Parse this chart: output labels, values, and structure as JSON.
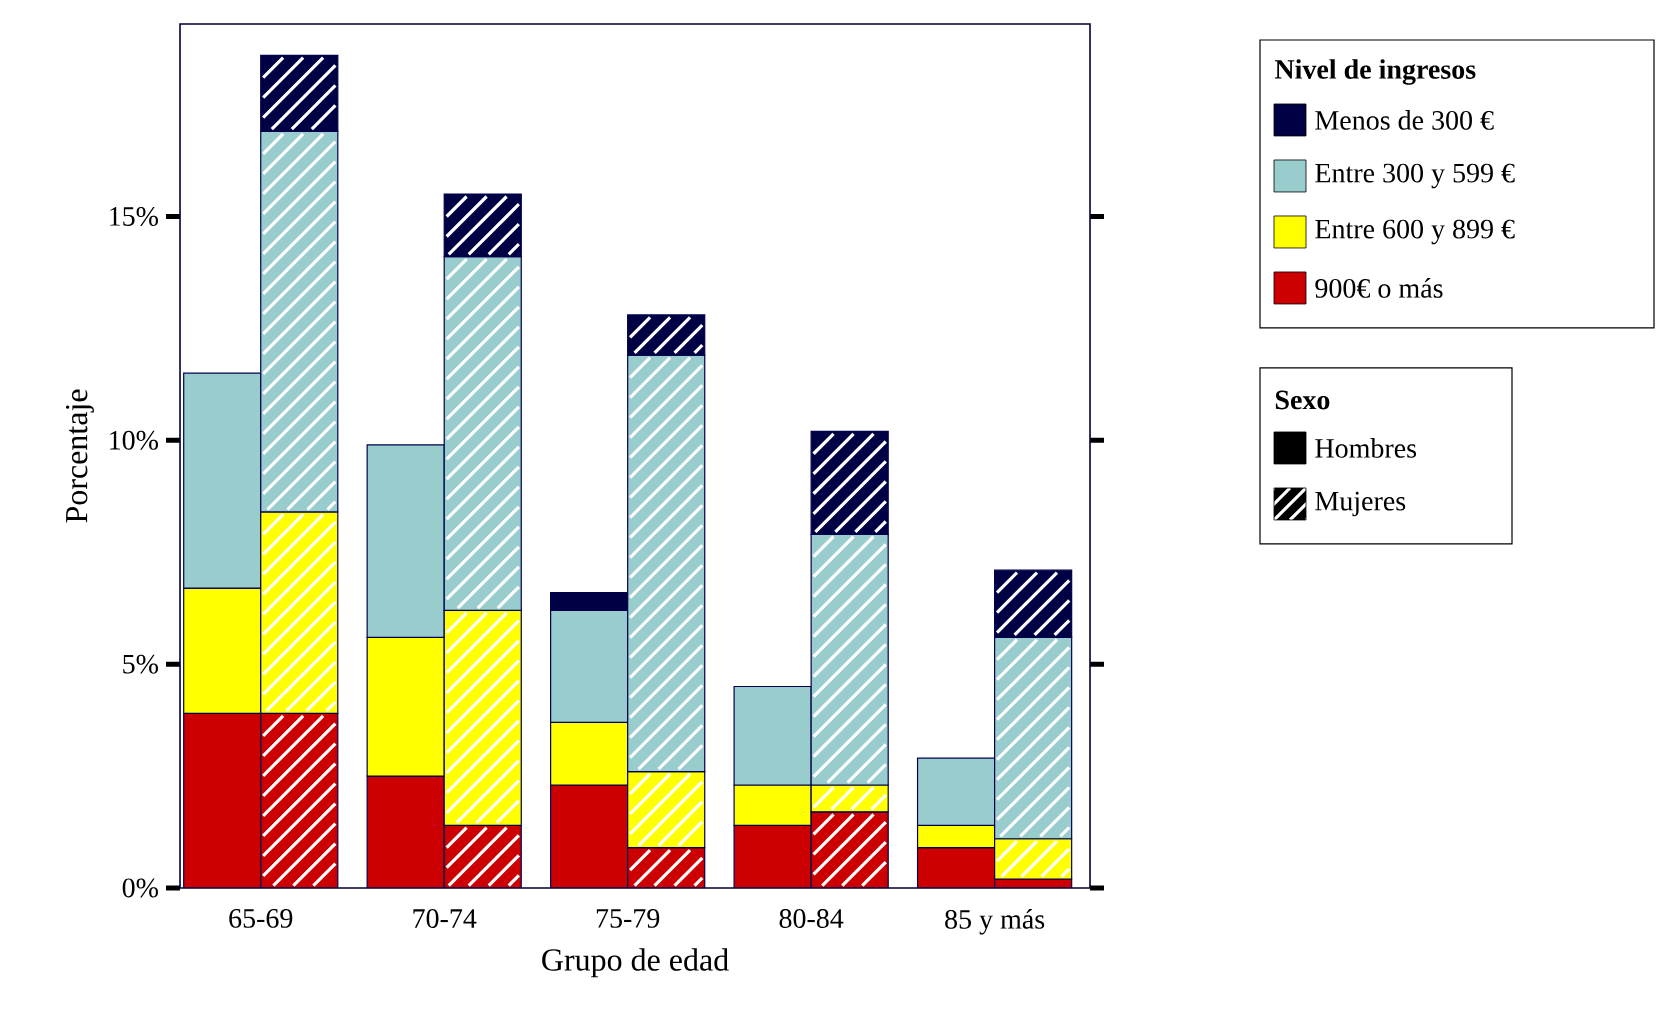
{
  "chart_data": {
    "type": "bar",
    "legend": "right",
    "legend_title": "Nivel de ingresos",
    "xlabel": "Grupo de edad",
    "ylabel": "Porcentaje",
    "annotations": [
      "Sexo",
      "Hombres",
      "Mujeres"
    ],
    "categories": [
      "65-69",
      "70-74",
      "75-79",
      "80-84",
      "85 y más"
    ],
    "ylim": [
      0,
      19.3
    ],
    "yticks": [
      {
        "value": 0,
        "label": "0%"
      },
      {
        "value": 5,
        "label": "5%"
      },
      {
        "value": 10,
        "label": "10%"
      },
      {
        "value": 15,
        "label": "15%"
      }
    ],
    "series": [
      {
        "name": "900€ o más",
        "color": "#cc0000",
        "base": [
          0,
          0,
          0,
          0,
          0
        ],
        "values": [
          3.9,
          2.5,
          2.3,
          1.4,
          0.9
        ]
      },
      {
        "name": "Entre 600 y 899 €",
        "color": "#ffff00",
        "base": [
          3.9,
          2.5,
          2.3,
          1.4,
          0.9
        ],
        "values": [
          2.8,
          3.1,
          1.4,
          0.9,
          0.5
        ]
      },
      {
        "name": "Entre 300 y 599 €",
        "color": "#99cccc",
        "base": [
          6.7,
          5.6,
          3.7,
          2.3,
          1.4
        ],
        "values": [
          4.8,
          4.3,
          2.5,
          2.2,
          1.5
        ]
      },
      {
        "name": "Menos de 300 €",
        "color": "#000044",
        "base": [
          null,
          null,
          6.2,
          null,
          null
        ],
        "values": [
          null,
          null,
          0.4,
          null,
          null
        ]
      },
      {
        "color": "#cc0000",
        "base": [
          0,
          0,
          0,
          0,
          0
        ],
        "values": [
          3.9,
          1.4,
          0.9,
          1.7,
          0.2
        ]
      },
      {
        "color": "#ffff00",
        "base": [
          3.9,
          1.4,
          0.9,
          1.7,
          0.2
        ],
        "values": [
          4.5,
          4.8,
          1.7,
          0.6,
          0.9
        ]
      },
      {
        "color": "#99cccc",
        "base": [
          8.4,
          6.2,
          2.6,
          2.3,
          1.1
        ],
        "values": [
          8.5,
          7.9,
          9.3,
          5.6,
          4.5
        ]
      },
      {
        "color": "#000044",
        "base": [
          16.9,
          14.1,
          11.9,
          7.9,
          5.6
        ],
        "values": [
          1.7,
          1.4,
          0.9,
          2.3,
          1.5
        ]
      }
    ]
  }
}
